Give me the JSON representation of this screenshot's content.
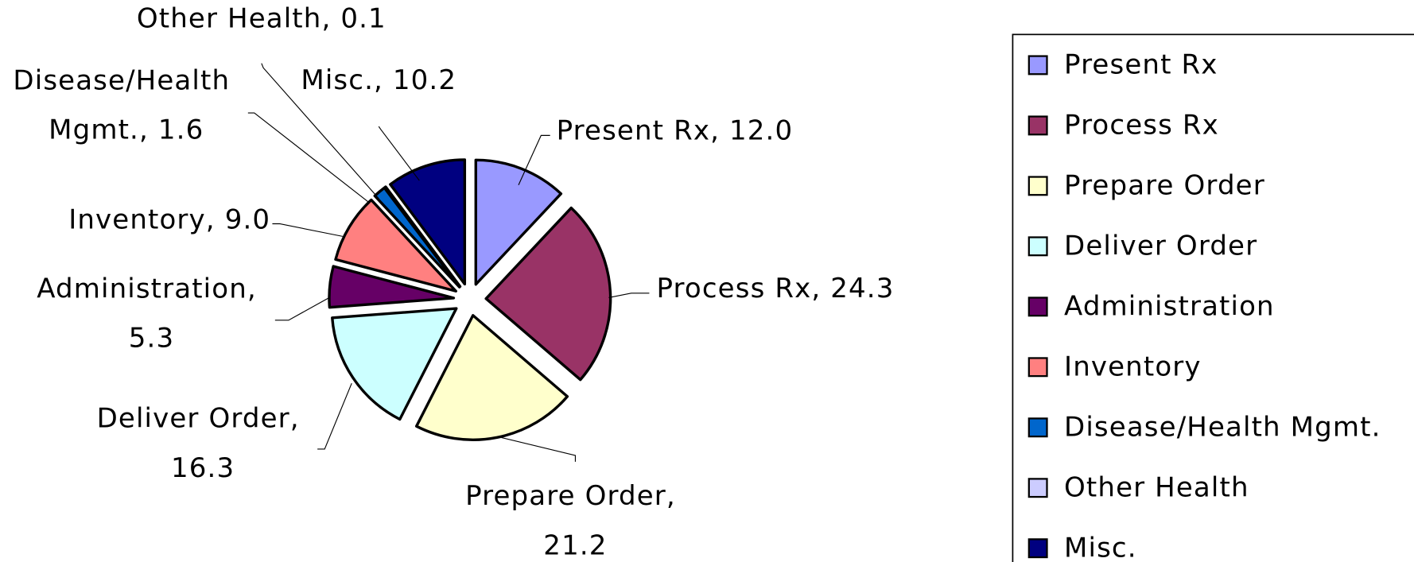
{
  "chart_data": {
    "type": "pie",
    "categories": [
      "Present Rx",
      "Process Rx",
      "Prepare Order",
      "Deliver Order",
      "Administration",
      "Inventory",
      "Disease/Health Mgmt.",
      "Other Health",
      "Misc."
    ],
    "values": [
      12.0,
      24.3,
      21.2,
      16.3,
      5.3,
      9.0,
      1.6,
      0.1,
      10.2
    ],
    "value_labels": [
      "Present Rx, 12.0",
      "Process Rx, 24.3",
      "Prepare Order, 21.2",
      "Deliver Order, 16.3",
      "Administration, 5.3",
      "Inventory, 9.0",
      "Disease/Health Mgmt., 1.6",
      "Other Health, 0.1",
      "Misc., 10.2"
    ],
    "colors": [
      "#9999ff",
      "#993366",
      "#ffffcc",
      "#ccffff",
      "#660066",
      "#ff8080",
      "#0066cc",
      "#ccccff",
      "#000080"
    ],
    "legend": "right"
  }
}
